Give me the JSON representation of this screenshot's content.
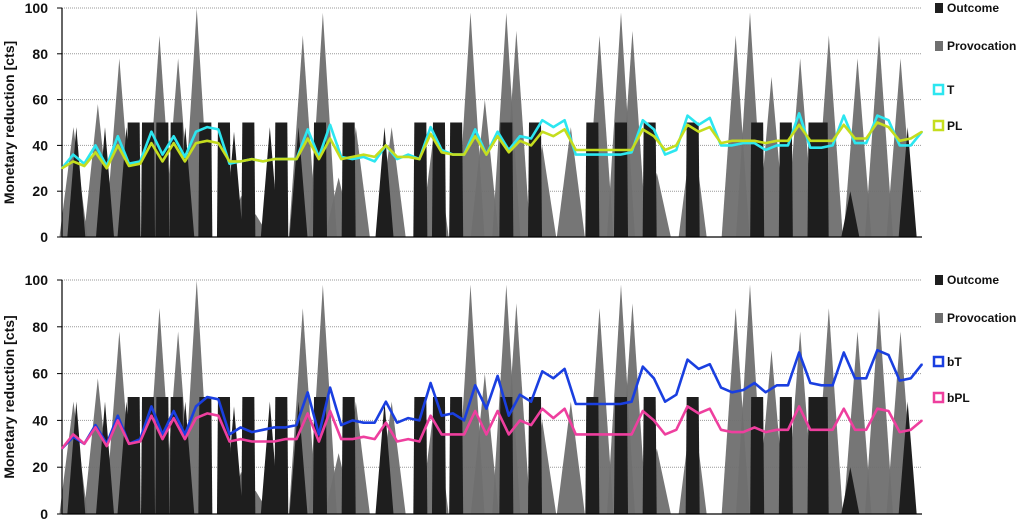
{
  "colors": {
    "outcome": "#1e1e1e",
    "provocation": "#6f6f6f",
    "T": "#2ce6f0",
    "PL": "#c5dd1e",
    "bT": "#1a3fe0",
    "bPL": "#ee3f9e"
  },
  "chart_data": [
    {
      "type": "line",
      "ylabel": "Monetary reduction [cts]",
      "ylim": [
        0,
        100
      ],
      "yticks": [
        "0",
        "20",
        "40",
        "60",
        "80",
        "100"
      ],
      "grid": true,
      "legend_position": "right",
      "legend": [
        {
          "label": "Outcome",
          "kind": "outcome-bar"
        },
        {
          "label": "Provocation",
          "kind": "provocation-bar"
        },
        {
          "label": "T",
          "kind": "line",
          "color_key": "T"
        },
        {
          "label": "PL",
          "kind": "line",
          "color_key": "PL"
        }
      ],
      "background_bars": {
        "x_max": 60,
        "outcome": [
          [
            1.0,
            48
          ],
          [
            3.0,
            48
          ],
          [
            4.5,
            48
          ],
          [
            5.0,
            50
          ],
          [
            6.0,
            50
          ],
          [
            7.0,
            50
          ],
          [
            8.0,
            50
          ],
          [
            8.6,
            48
          ],
          [
            10.0,
            50
          ],
          [
            11.3,
            50
          ],
          [
            12.0,
            46
          ],
          [
            13.0,
            50
          ],
          [
            14.5,
            48
          ],
          [
            15.3,
            50
          ],
          [
            16.5,
            48
          ],
          [
            18.0,
            50
          ],
          [
            20.0,
            50
          ],
          [
            22.5,
            48
          ],
          [
            25.0,
            50
          ],
          [
            26.3,
            50
          ],
          [
            27.5,
            50
          ],
          [
            31.0,
            50
          ],
          [
            33.0,
            50
          ],
          [
            37.0,
            50
          ],
          [
            39.0,
            50
          ],
          [
            41.0,
            50
          ],
          [
            44.0,
            50
          ],
          [
            48.5,
            50
          ],
          [
            50.5,
            50
          ],
          [
            52.5,
            50
          ],
          [
            53.0,
            50
          ],
          [
            55.0,
            20
          ],
          [
            59.0,
            48
          ]
        ],
        "provocation": [
          [
            0.8,
            48
          ],
          [
            2.5,
            58
          ],
          [
            4.0,
            78
          ],
          [
            6.8,
            88
          ],
          [
            8.1,
            78
          ],
          [
            9.4,
            100
          ],
          [
            12.5,
            18
          ],
          [
            13.5,
            10
          ],
          [
            16.8,
            88
          ],
          [
            18.2,
            98
          ],
          [
            19.3,
            26
          ],
          [
            20.5,
            48
          ],
          [
            23.0,
            48
          ],
          [
            26.0,
            48
          ],
          [
            28.5,
            98
          ],
          [
            29.5,
            60
          ],
          [
            31.0,
            98
          ],
          [
            31.7,
            90
          ],
          [
            33.5,
            40
          ],
          [
            35.5,
            48
          ],
          [
            37.5,
            88
          ],
          [
            39.0,
            98
          ],
          [
            39.8,
            90
          ],
          [
            41.5,
            28
          ],
          [
            44.0,
            48
          ],
          [
            47.0,
            88
          ],
          [
            48.0,
            98
          ],
          [
            49.5,
            70
          ],
          [
            51.5,
            78
          ],
          [
            53.5,
            88
          ],
          [
            55.5,
            78
          ],
          [
            57.0,
            88
          ],
          [
            58.5,
            78
          ]
        ]
      },
      "series": [
        {
          "name": "T",
          "color_key": "T",
          "values": [
            30,
            36,
            32,
            40,
            31,
            44,
            32,
            33,
            46,
            36,
            44,
            35,
            46,
            48,
            47,
            32,
            33,
            34,
            33,
            34,
            34,
            34,
            47,
            35,
            49,
            35,
            34,
            35,
            33,
            40,
            34,
            36,
            34,
            48,
            38,
            36,
            36,
            47,
            36,
            46,
            38,
            44,
            43,
            51,
            48,
            51,
            36,
            36,
            36,
            36,
            36,
            37,
            51,
            47,
            36,
            38,
            53,
            49,
            52,
            40,
            40,
            41,
            41,
            38,
            40,
            40,
            54,
            39,
            39,
            40,
            53,
            41,
            41,
            53,
            51,
            40,
            40,
            46
          ]
        },
        {
          "name": "PL",
          "color_key": "PL",
          "values": [
            30,
            33,
            31,
            37,
            30,
            40,
            31,
            32,
            41,
            33,
            41,
            33,
            41,
            42,
            41,
            33,
            33,
            34,
            33,
            34,
            34,
            34,
            43,
            34,
            43,
            34,
            35,
            36,
            35,
            40,
            35,
            35,
            34,
            45,
            37,
            36,
            36,
            44,
            36,
            44,
            37,
            42,
            40,
            46,
            44,
            47,
            38,
            38,
            38,
            38,
            38,
            38,
            47,
            44,
            38,
            40,
            49,
            46,
            48,
            41,
            42,
            42,
            42,
            41,
            42,
            42,
            49,
            42,
            42,
            42,
            49,
            43,
            43,
            50,
            48,
            42,
            43,
            46
          ]
        }
      ]
    },
    {
      "type": "line",
      "ylabel": "Monetary reduction [cts]",
      "ylim": [
        0,
        100
      ],
      "yticks": [
        "0",
        "20",
        "40",
        "60",
        "80",
        "100"
      ],
      "grid": true,
      "legend_position": "right",
      "legend": [
        {
          "label": "Outcome",
          "kind": "outcome-bar"
        },
        {
          "label": "Provocation",
          "kind": "provocation-bar"
        },
        {
          "label": "bT",
          "kind": "line",
          "color_key": "bT"
        },
        {
          "label": "bPL",
          "kind": "line",
          "color_key": "bPL"
        }
      ],
      "background_bars": {
        "x_max": 60,
        "outcome": [
          [
            1.0,
            48
          ],
          [
            3.0,
            48
          ],
          [
            4.5,
            48
          ],
          [
            5.0,
            50
          ],
          [
            6.0,
            50
          ],
          [
            7.0,
            50
          ],
          [
            8.0,
            50
          ],
          [
            8.6,
            48
          ],
          [
            10.0,
            50
          ],
          [
            11.3,
            50
          ],
          [
            12.0,
            46
          ],
          [
            13.0,
            50
          ],
          [
            14.5,
            48
          ],
          [
            15.3,
            50
          ],
          [
            16.5,
            48
          ],
          [
            18.0,
            50
          ],
          [
            20.0,
            50
          ],
          [
            22.5,
            48
          ],
          [
            25.0,
            50
          ],
          [
            26.3,
            50
          ],
          [
            27.5,
            50
          ],
          [
            31.0,
            50
          ],
          [
            33.0,
            50
          ],
          [
            37.0,
            50
          ],
          [
            39.0,
            50
          ],
          [
            41.0,
            50
          ],
          [
            44.0,
            50
          ],
          [
            48.5,
            50
          ],
          [
            50.5,
            50
          ],
          [
            52.5,
            50
          ],
          [
            53.0,
            50
          ],
          [
            55.0,
            20
          ],
          [
            59.0,
            48
          ]
        ],
        "provocation": [
          [
            0.8,
            48
          ],
          [
            2.5,
            58
          ],
          [
            4.0,
            78
          ],
          [
            6.8,
            88
          ],
          [
            8.1,
            78
          ],
          [
            9.4,
            100
          ],
          [
            12.5,
            18
          ],
          [
            13.5,
            10
          ],
          [
            16.8,
            88
          ],
          [
            18.2,
            98
          ],
          [
            19.3,
            26
          ],
          [
            20.5,
            48
          ],
          [
            23.0,
            48
          ],
          [
            26.0,
            48
          ],
          [
            28.5,
            98
          ],
          [
            29.5,
            60
          ],
          [
            31.0,
            98
          ],
          [
            31.7,
            90
          ],
          [
            33.5,
            40
          ],
          [
            35.5,
            48
          ],
          [
            37.5,
            88
          ],
          [
            39.0,
            98
          ],
          [
            39.8,
            90
          ],
          [
            41.5,
            28
          ],
          [
            44.0,
            48
          ],
          [
            47.0,
            88
          ],
          [
            48.0,
            98
          ],
          [
            49.5,
            70
          ],
          [
            51.5,
            78
          ],
          [
            53.5,
            88
          ],
          [
            55.5,
            78
          ],
          [
            57.0,
            88
          ],
          [
            58.5,
            78
          ]
        ]
      },
      "series": [
        {
          "name": "bT",
          "color_key": "bT",
          "values": [
            28,
            33,
            30,
            38,
            30,
            42,
            30,
            32,
            46,
            34,
            44,
            34,
            46,
            50,
            49,
            34,
            37,
            35,
            36,
            37,
            37,
            38,
            52,
            34,
            54,
            38,
            40,
            39,
            39,
            48,
            39,
            41,
            40,
            56,
            42,
            43,
            40,
            55,
            45,
            59,
            42,
            51,
            48,
            61,
            58,
            62,
            47,
            47,
            47,
            47,
            47,
            48,
            63,
            58,
            48,
            51,
            66,
            62,
            64,
            54,
            52,
            53,
            56,
            52,
            55,
            55,
            69,
            56,
            55,
            55,
            69,
            58,
            58,
            70,
            68,
            57,
            58,
            64
          ]
        },
        {
          "name": "bPL",
          "color_key": "bPL",
          "values": [
            28,
            34,
            30,
            37,
            29,
            40,
            30,
            31,
            42,
            32,
            41,
            32,
            41,
            43,
            42,
            31,
            32,
            31,
            31,
            31,
            32,
            32,
            43,
            31,
            44,
            32,
            32,
            33,
            32,
            39,
            31,
            32,
            31,
            42,
            34,
            34,
            34,
            44,
            34,
            44,
            34,
            40,
            38,
            45,
            41,
            45,
            34,
            34,
            34,
            34,
            34,
            34,
            44,
            40,
            34,
            36,
            46,
            43,
            45,
            36,
            35,
            35,
            37,
            35,
            36,
            36,
            46,
            36,
            36,
            36,
            45,
            36,
            36,
            45,
            44,
            35,
            36,
            40
          ]
        }
      ]
    }
  ]
}
